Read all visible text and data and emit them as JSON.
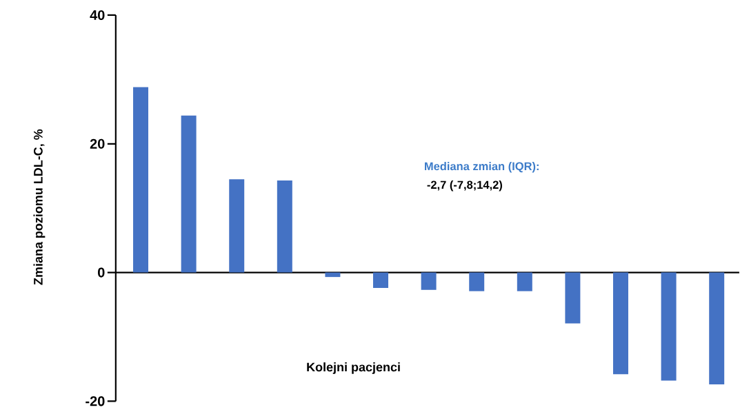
{
  "chart_data": {
    "type": "bar",
    "ylabel": "Zmiana poziomu LDL-C, %",
    "xlabel": "Kolejni pacjenci",
    "annotations": [
      "Mediana zmian (IQR):",
      "-2,7 (-7,8;14,2)"
    ],
    "categories": [
      null,
      null,
      null,
      null,
      null,
      null,
      null,
      null,
      null,
      null,
      null,
      null,
      null
    ],
    "values": [
      28.8,
      24.4,
      14.5,
      14.3,
      -0.7,
      -2.4,
      -2.7,
      -2.9,
      -2.9,
      -7.9,
      -15.8,
      -16.8,
      -17.4
    ],
    "color": "#4472c4",
    "ylim": [
      -20,
      40
    ],
    "yticks": [
      -20,
      0,
      20,
      40
    ],
    "tick_labels": "y"
  }
}
